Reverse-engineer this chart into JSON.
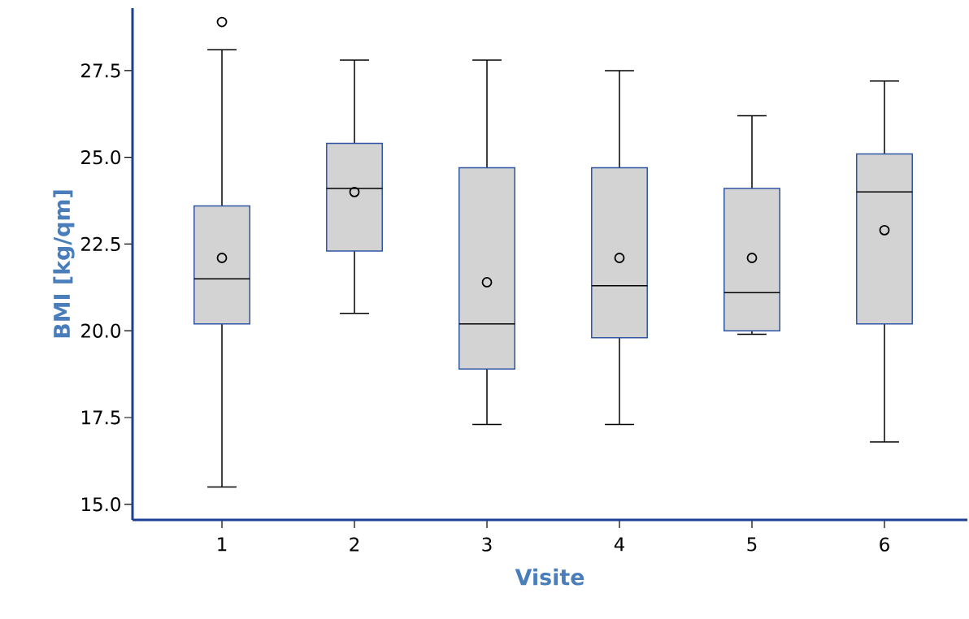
{
  "chart_data": {
    "type": "box",
    "xlabel": "Visite",
    "ylabel": "BMI [kg/qm]",
    "categories": [
      "1",
      "2",
      "3",
      "4",
      "5",
      "6"
    ],
    "boxes": [
      {
        "low": 15.5,
        "q1": 20.2,
        "median": 21.5,
        "q3": 23.6,
        "high": 28.1,
        "mean": 22.1,
        "outliers": [
          28.9
        ]
      },
      {
        "low": 20.5,
        "q1": 22.3,
        "median": 24.1,
        "q3": 25.4,
        "high": 27.8,
        "mean": 24.0
      },
      {
        "low": 17.3,
        "q1": 18.9,
        "median": 20.2,
        "q3": 24.7,
        "high": 27.8,
        "mean": 21.4
      },
      {
        "low": 17.3,
        "q1": 19.8,
        "median": 21.3,
        "q3": 24.7,
        "high": 27.5,
        "mean": 22.1
      },
      {
        "low": 19.9,
        "q1": 20.0,
        "median": 21.1,
        "q3": 24.1,
        "high": 26.2,
        "mean": 22.1
      },
      {
        "low": 16.8,
        "q1": 20.2,
        "median": 24.0,
        "q3": 25.1,
        "high": 27.2,
        "mean": 22.9
      }
    ],
    "color": "#d3d3d3",
    "ylim": [
      14.55,
      29.3
    ],
    "yticks": [
      {
        "value": 15,
        "label": "15.0"
      },
      17.5,
      {
        "value": 20,
        "label": "20.0"
      },
      22.5,
      {
        "value": 25,
        "label": "25.0"
      },
      27.5
    ],
    "marker": "circle"
  }
}
